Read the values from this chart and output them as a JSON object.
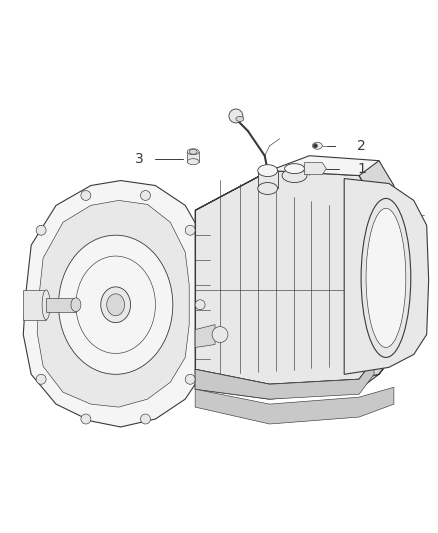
{
  "background_color": "#ffffff",
  "fig_width": 4.38,
  "fig_height": 5.33,
  "dpi": 100,
  "label_1": "1",
  "label_2": "2",
  "label_3": "3",
  "line_color": "#3a3a3a",
  "text_color": "#222222",
  "font_size": 10,
  "lw_main": 0.8,
  "lw_thin": 0.45,
  "lw_med": 0.6,
  "face_light": "#f5f5f5",
  "face_mid": "#e8e8e8",
  "face_dark": "#d8d8d8",
  "face_darker": "#c8c8c8"
}
